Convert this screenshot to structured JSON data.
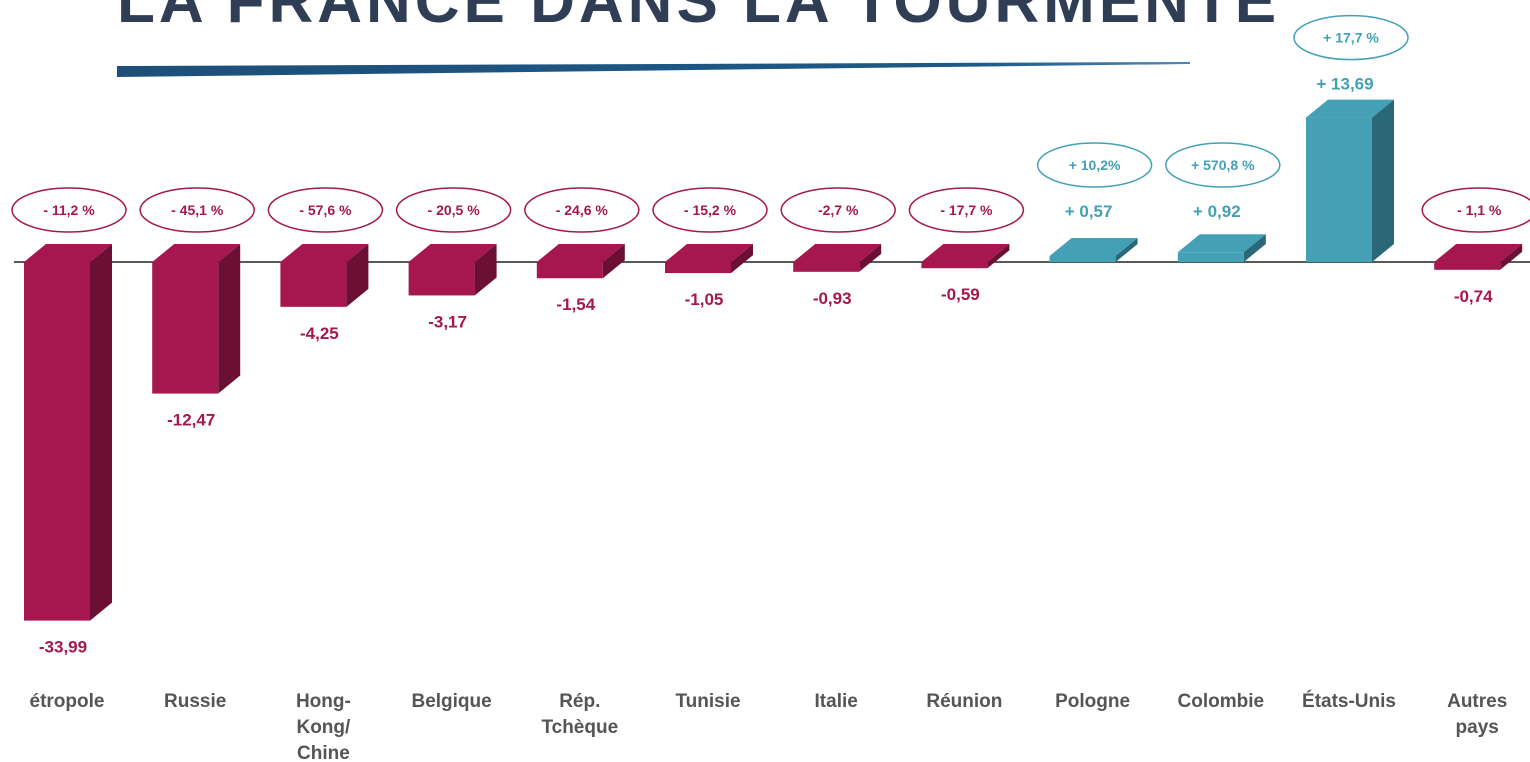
{
  "chart_data": {
    "type": "bar3d",
    "title": "LA FRANCE DANS LA TOURMENTE",
    "categories": [
      "étropole",
      "Russie",
      "Hong-\nKong/\nChine",
      "Belgique",
      "Rép.\nTchèque",
      "Tunisie",
      "Italie",
      "Réunion",
      "Pologne",
      "Colombie",
      "États-Unis",
      "Autres\npays"
    ],
    "values": [
      -33.99,
      -12.47,
      -4.25,
      -3.17,
      -1.54,
      -1.05,
      -0.93,
      -0.59,
      0.57,
      0.92,
      13.69,
      -0.74
    ],
    "value_labels": [
      "-33,99",
      "-12,47",
      "-4,25",
      "-3,17",
      "-1,54",
      "-1,05",
      "-0,93",
      "-0,59",
      "+  0,57",
      "+  0,92",
      "+  13,69",
      "-0,74"
    ],
    "changes": [
      -11.2,
      -45.1,
      -57.6,
      -20.5,
      -24.6,
      -15.2,
      -2.7,
      -17.7,
      10.2,
      570.8,
      17.7,
      -1.1
    ],
    "change_labels": [
      "- 11,2 %",
      "- 45,1 %",
      "- 57,6 %",
      "- 20,5 %",
      "- 24,6 %",
      "- 15,2  %",
      "-2,7 %",
      "- 17,7 %",
      "+ 10,2%",
      "+ 570,8 %",
      "+ 17,7 %",
      "- 1,1 %"
    ],
    "negative_color": "#a6174f",
    "negative_side_color": "#6b1033",
    "positive_color": "#44a0b5",
    "positive_side_color": "#2a6878"
  }
}
